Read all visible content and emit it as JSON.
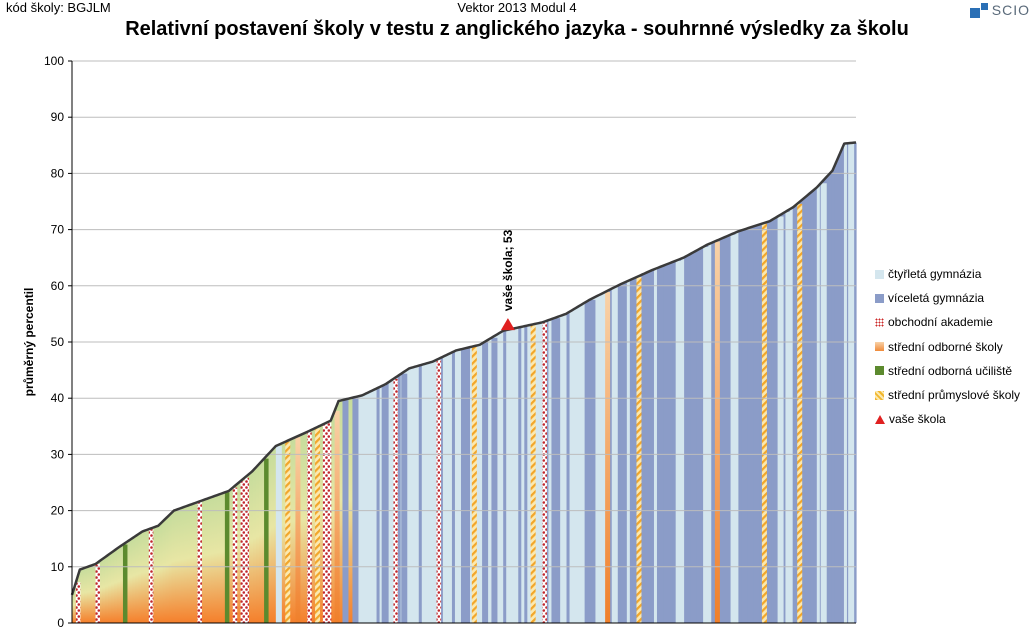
{
  "header": {
    "school_code": "kód školy: BGJLM",
    "test_name": "Vektor 2013 Modul 4",
    "logo_text": "SCIO"
  },
  "chart_data": {
    "type": "area",
    "title": "Relativní postavení školy v testu z anglického jazyka - souhrnné výsledky za školu",
    "xlabel": "",
    "ylabel": "průměrný percentil",
    "ylim": [
      0,
      100
    ],
    "y_ticks": [
      0,
      10,
      20,
      30,
      40,
      50,
      60,
      70,
      80,
      90,
      100
    ],
    "grid": true,
    "legend_position": "right",
    "categories_legend": [
      {
        "key": "g4",
        "label": "čtyřletá gymnázia",
        "color": "#d4e6ee"
      },
      {
        "key": "gv",
        "label": "víceletá gymnázia",
        "color": "#8b9cc8"
      },
      {
        "key": "oa",
        "label": "obchodní akademie",
        "color": "#cc2a2a"
      },
      {
        "key": "sos",
        "label": "střední odborné školy",
        "color": "#f08a3a"
      },
      {
        "key": "sou",
        "label": "střední odborná učiliště",
        "color": "#5c8a2e"
      },
      {
        "key": "sps",
        "label": "střední průmyslové školy",
        "color": "#f2b72e"
      },
      {
        "key": "ours",
        "label": "vaše škola",
        "color": "#e02020"
      }
    ],
    "curve": {
      "school_count_approx": 260,
      "min": 5,
      "max": 85.5
    },
    "highlight": {
      "label": "vaše škola; 53",
      "value": 53,
      "color": "#e02020"
    }
  }
}
